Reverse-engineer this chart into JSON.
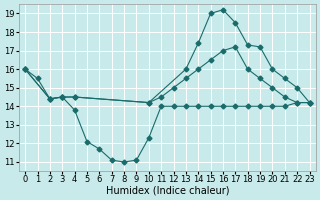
{
  "xlabel": "Humidex (Indice chaleur)",
  "bg_color": "#c8eaea",
  "line_color": "#1a6b6b",
  "grid_color": "#b8d8d8",
  "xlim": [
    -0.5,
    23.5
  ],
  "ylim": [
    10.5,
    19.5
  ],
  "xticks": [
    0,
    1,
    2,
    3,
    4,
    5,
    6,
    7,
    8,
    9,
    10,
    11,
    12,
    13,
    14,
    15,
    16,
    17,
    18,
    19,
    20,
    21,
    22,
    23
  ],
  "yticks": [
    11,
    12,
    13,
    14,
    15,
    16,
    17,
    18,
    19
  ],
  "lines": [
    {
      "x": [
        0,
        1,
        2,
        3,
        4,
        5,
        6,
        7,
        8,
        9,
        10,
        11,
        12,
        13,
        14,
        15,
        16,
        17,
        18,
        19,
        20,
        21,
        22,
        23
      ],
      "y": [
        16.0,
        15.5,
        14.4,
        14.5,
        13.8,
        12.1,
        11.7,
        11.1,
        11.0,
        11.1,
        12.3,
        14.0,
        14.0,
        14.0,
        14.0,
        14.0,
        14.0,
        14.0,
        14.0,
        14.0,
        14.0,
        14.0,
        14.2,
        14.2
      ]
    },
    {
      "x": [
        0,
        2,
        3,
        4,
        10,
        11,
        12,
        13,
        14,
        15,
        16,
        17,
        18,
        19,
        20,
        21,
        22,
        23
      ],
      "y": [
        16.0,
        14.4,
        14.5,
        14.5,
        14.2,
        14.5,
        15.0,
        15.5,
        16.0,
        16.5,
        17.0,
        17.2,
        16.0,
        15.5,
        15.0,
        14.5,
        14.2,
        14.2
      ]
    },
    {
      "x": [
        0,
        2,
        3,
        4,
        10,
        13,
        14,
        15,
        16,
        17,
        18,
        19,
        20,
        21,
        22,
        23
      ],
      "y": [
        16.0,
        14.4,
        14.5,
        14.5,
        14.2,
        16.0,
        17.4,
        19.0,
        19.2,
        18.5,
        17.3,
        17.2,
        16.0,
        15.5,
        15.0,
        14.2
      ]
    }
  ],
  "marker_size": 2.5,
  "line_width": 0.8,
  "tick_font_size": 6.0,
  "label_font_size": 7.0
}
